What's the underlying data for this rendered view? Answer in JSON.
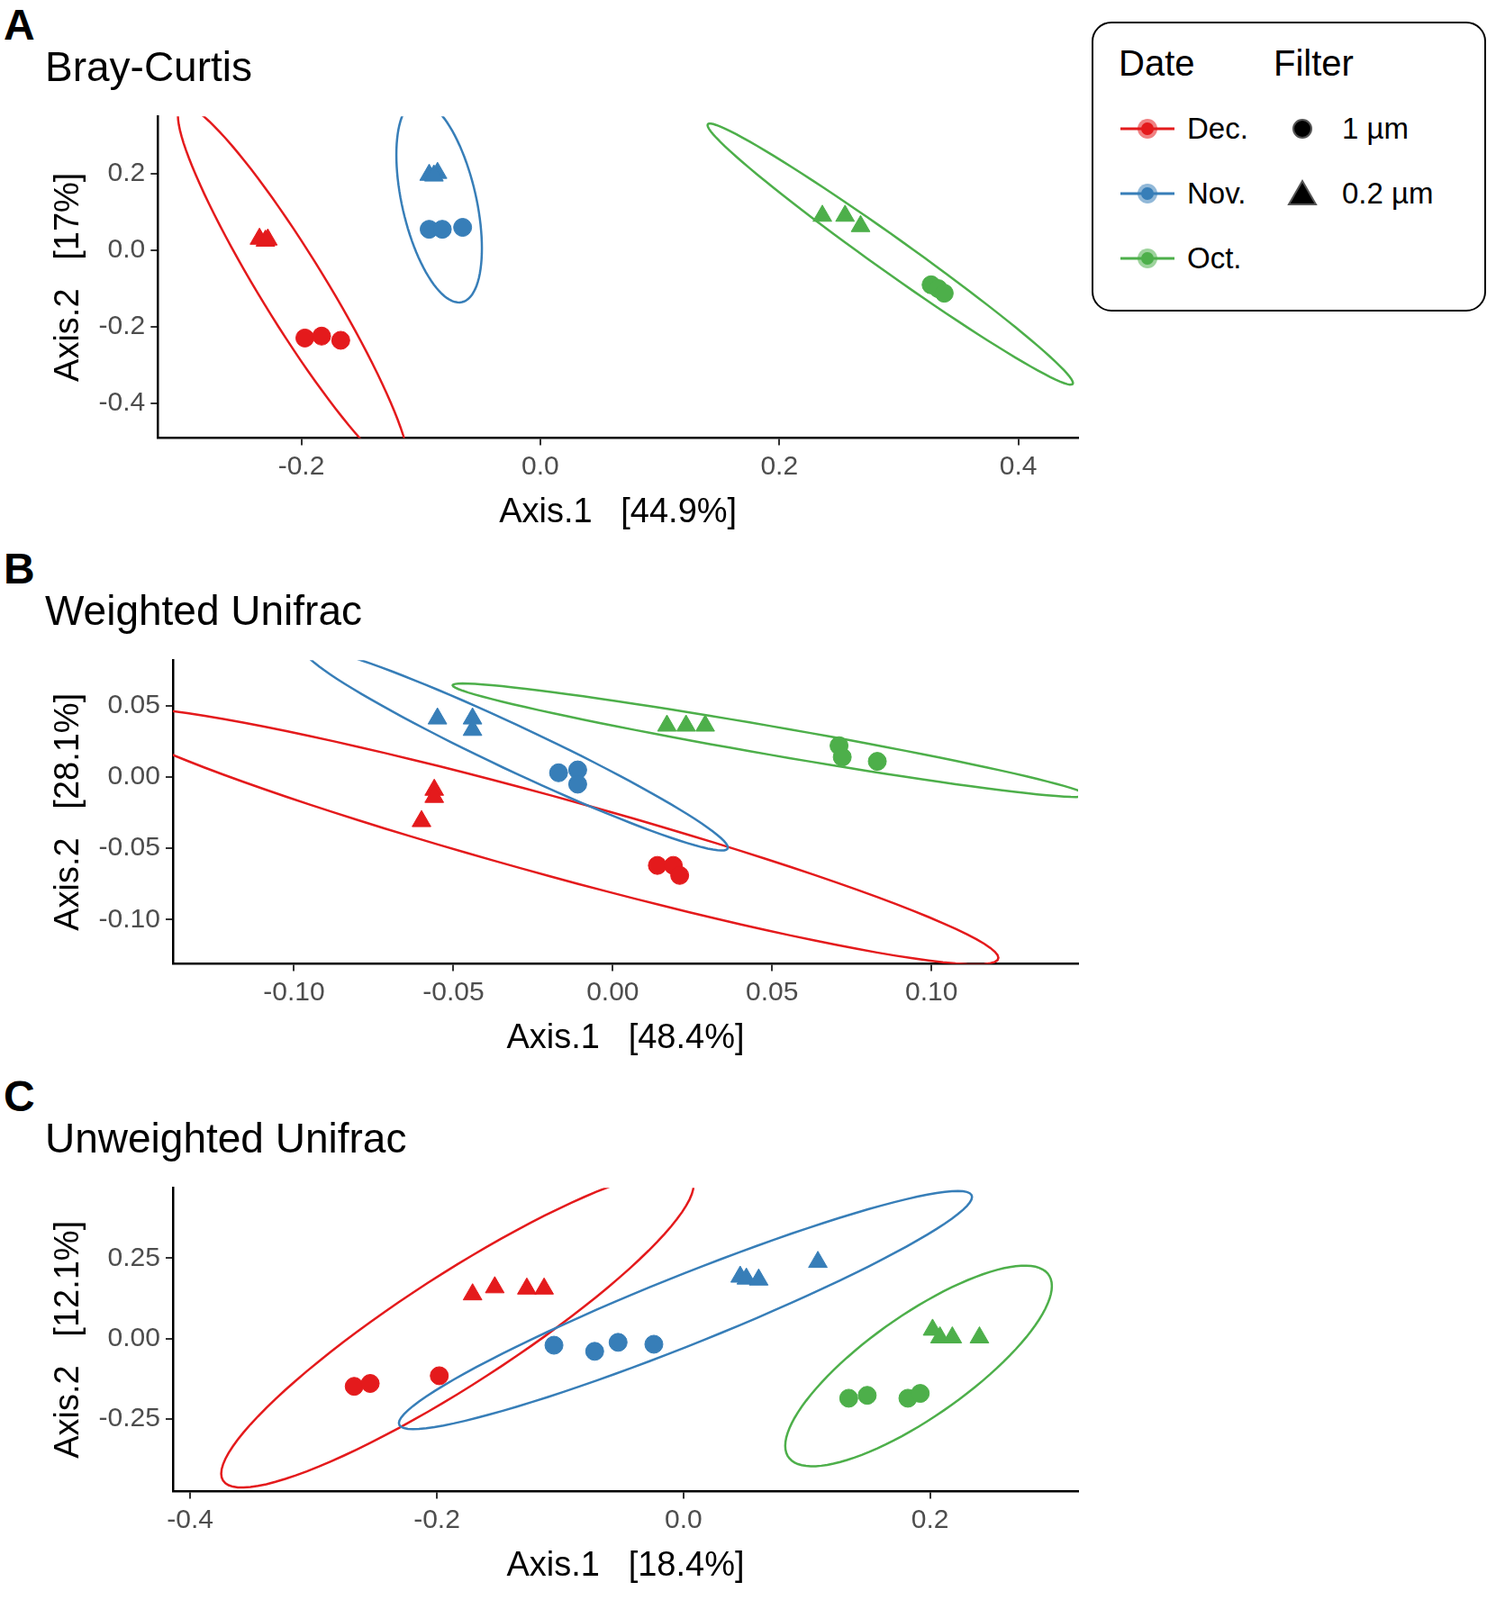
{
  "chart_data": [
    {
      "type": "scatter",
      "panel": "A",
      "title": "Bray-Curtis",
      "x_label": "Axis.1   [44.9%]",
      "y_label": "Axis.2   [17%]",
      "xlim": [
        -0.32,
        0.45
      ],
      "ylim": [
        -0.49,
        0.35
      ],
      "xticks": [
        -0.2,
        {
          "value": 0,
          "label": "0.0"
        },
        0.2,
        0.4
      ],
      "yticks": [
        -0.4,
        -0.2,
        {
          "value": 0,
          "label": "0.0"
        },
        0.2
      ],
      "grid": false,
      "series": [
        {
          "name": "Dec.",
          "color": "#E41A1C",
          "x": [
            -0.235,
            -0.23,
            -0.228,
            -0.197,
            -0.183,
            -0.167
          ],
          "y": [
            0.03,
            0.025,
            0.028,
            -0.229,
            -0.224,
            -0.235
          ],
          "filter": [
            "0.2 µm",
            "0.2 µm",
            "0.2 µm",
            "1 µm",
            "1 µm",
            "1 µm"
          ]
        },
        {
          "name": "Nov.",
          "color": "#377EB8",
          "x": [
            -0.093,
            -0.086,
            -0.089,
            -0.093,
            -0.082,
            -0.065
          ],
          "y": [
            0.197,
            0.202,
            0.195,
            0.055,
            0.055,
            0.06
          ],
          "filter": [
            "0.2 µm",
            "0.2 µm",
            "0.2 µm",
            "1 µm",
            "1 µm",
            "1 µm"
          ]
        },
        {
          "name": "Oct.",
          "color": "#4DAF4A",
          "x": [
            0.236,
            0.255,
            0.268,
            0.327,
            0.333,
            0.338
          ],
          "y": [
            0.09,
            0.09,
            0.063,
            -0.09,
            -0.1,
            -0.112
          ],
          "filter": [
            "0.2 µm",
            "0.2 µm",
            "0.2 µm",
            "1 µm",
            "1 µm",
            "1 µm"
          ]
        }
      ]
    },
    {
      "type": "scatter",
      "panel": "B",
      "title": "Weighted Unifrac",
      "x_label": "Axis.1   [48.4%]",
      "y_label": "Axis.2   [28.1%]",
      "xlim": [
        -0.138,
        0.146
      ],
      "ylim": [
        -0.131,
        0.082
      ],
      "xticks": [
        {
          "value": -0.1,
          "label": "-0.10"
        },
        {
          "value": -0.05,
          "label": "-0.05"
        },
        {
          "value": 0,
          "label": "0.00"
        },
        {
          "value": 0.05,
          "label": "0.05"
        },
        {
          "value": 0.1,
          "label": "0.10"
        }
      ],
      "yticks": [
        {
          "value": -0.1,
          "label": "-0.10"
        },
        {
          "value": -0.05,
          "label": "-0.05"
        },
        {
          "value": 0,
          "label": "0.00"
        },
        {
          "value": 0.05,
          "label": "0.05"
        }
      ],
      "grid": false,
      "series": [
        {
          "name": "Dec.",
          "color": "#E41A1C",
          "x": [
            -0.056,
            -0.056,
            -0.06,
            0.014,
            0.019,
            0.021
          ],
          "y": [
            -0.009,
            -0.014,
            -0.031,
            -0.062,
            -0.062,
            -0.069
          ],
          "filter": [
            "0.2 µm",
            "0.2 µm",
            "0.2 µm",
            "1 µm",
            "1 µm",
            "1 µm"
          ]
        },
        {
          "name": "Nov.",
          "color": "#377EB8",
          "x": [
            -0.055,
            -0.044,
            -0.044,
            -0.017,
            -0.011,
            -0.011
          ],
          "y": [
            0.041,
            0.041,
            0.033,
            0.003,
            0.005,
            -0.005
          ],
          "filter": [
            "0.2 µm",
            "0.2 µm",
            "0.2 µm",
            "1 µm",
            "1 µm",
            "1 µm"
          ]
        },
        {
          "name": "Oct.",
          "color": "#4DAF4A",
          "x": [
            0.017,
            0.023,
            0.029,
            0.071,
            0.072,
            0.083
          ],
          "y": [
            0.036,
            0.036,
            0.036,
            0.022,
            0.014,
            0.011
          ],
          "filter": [
            "0.2 µm",
            "0.2 µm",
            "0.2 µm",
            "1 µm",
            "1 µm",
            "1 µm"
          ]
        }
      ]
    },
    {
      "type": "scatter",
      "panel": "C",
      "title": "Unweighted Unifrac",
      "x_label": "Axis.1   [18.4%]",
      "y_label": "Axis.2   [12.1%]",
      "xlim": [
        -0.414,
        0.32
      ],
      "ylim": [
        -0.476,
        0.469
      ],
      "xticks": [
        -0.4,
        -0.2,
        {
          "value": 0,
          "label": "0.0"
        },
        0.2
      ],
      "yticks": [
        -0.25,
        {
          "value": 0,
          "label": "0.00"
        },
        0.25
      ],
      "grid": false,
      "series": [
        {
          "name": "Dec.",
          "color": "#E41A1C",
          "x": [
            -0.171,
            -0.153,
            -0.127,
            -0.113,
            -0.267,
            -0.254,
            -0.198
          ],
          "y": [
            0.137,
            0.159,
            0.155,
            0.155,
            -0.149,
            -0.14,
            -0.116
          ],
          "filter": [
            "0.2 µm",
            "0.2 µm",
            "0.2 µm",
            "0.2 µm",
            "1 µm",
            "1 µm",
            "1 µm"
          ]
        },
        {
          "name": "Nov.",
          "color": "#377EB8",
          "x": [
            0.046,
            0.051,
            0.061,
            0.109,
            -0.105,
            -0.072,
            -0.053,
            -0.024
          ],
          "y": [
            0.192,
            0.186,
            0.183,
            0.238,
            -0.021,
            -0.04,
            -0.012,
            -0.018
          ],
          "filter": [
            "0.2 µm",
            "0.2 µm",
            "0.2 µm",
            "0.2 µm",
            "1 µm",
            "1 µm",
            "1 µm",
            "1 µm"
          ]
        },
        {
          "name": "Oct.",
          "color": "#4DAF4A",
          "x": [
            0.202,
            0.208,
            0.218,
            0.24,
            0.134,
            0.149,
            0.182,
            0.192
          ],
          "y": [
            0.027,
            0.003,
            0.003,
            0.003,
            -0.186,
            -0.177,
            -0.186,
            -0.171
          ],
          "filter": [
            "0.2 µm",
            "0.2 µm",
            "0.2 µm",
            "0.2 µm",
            "1 µm",
            "1 µm",
            "1 µm",
            "1 µm"
          ]
        }
      ]
    }
  ],
  "shared_legend": {
    "date_title": "Date",
    "filter_title": "Filter",
    "dates": [
      {
        "name": "Dec.",
        "color": "#E41A1C"
      },
      {
        "name": "Nov.",
        "color": "#377EB8"
      },
      {
        "name": "Oct.",
        "color": "#4DAF4A"
      }
    ],
    "filters": [
      {
        "name": "1 µm",
        "marker": "circle"
      },
      {
        "name": "0.2 µm",
        "marker": "triangle"
      }
    ]
  }
}
